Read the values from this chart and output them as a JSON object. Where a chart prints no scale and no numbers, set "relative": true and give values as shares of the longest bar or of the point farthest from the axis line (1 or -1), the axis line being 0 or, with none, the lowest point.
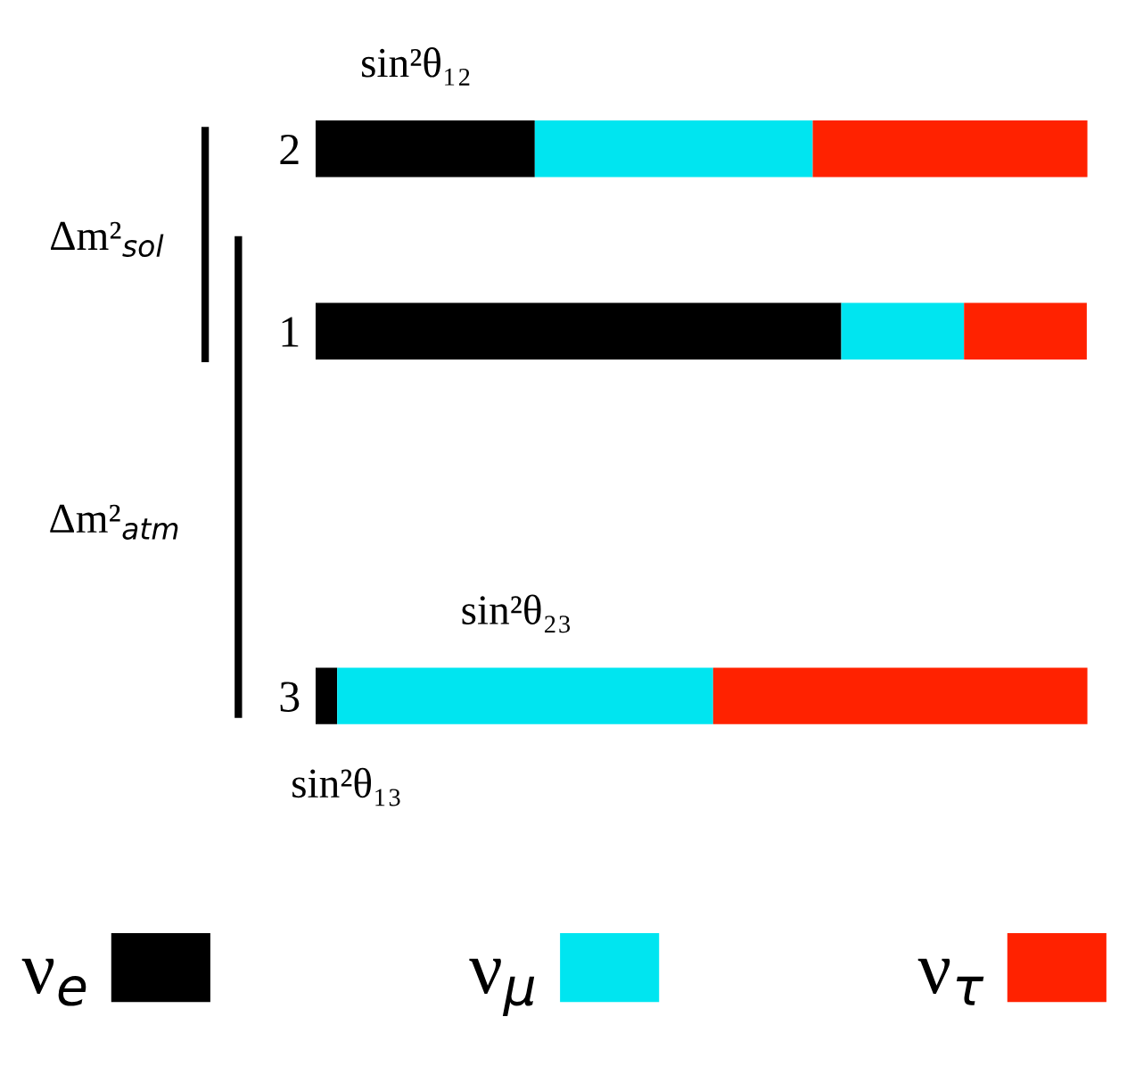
{
  "chart_data": {
    "type": "bar",
    "orientation": "horizontal",
    "stacked": true,
    "relative": true,
    "categories": [
      "2",
      "1",
      null,
      "3"
    ],
    "series": [
      {
        "name": "ν$_{e}$",
        "color": "#000000",
        "values": [
          0.284,
          0.681,
          null,
          0.028
        ]
      },
      {
        "name": "ν$_{μ}$",
        "color": "#00e5f0",
        "values": [
          0.36,
          0.159,
          null,
          0.487
        ]
      },
      {
        "name": "ν$_{τ}$",
        "color": "#ff2200",
        "values": [
          0.356,
          0.159,
          null,
          0.485
        ]
      }
    ],
    "annotations": [
      "sin²θ₁₂",
      "sin²θ₂₃",
      "sin²θ₁₃",
      "Δm²$_{sol}$",
      "Δm²$_{atm}$"
    ],
    "legend": "bottom",
    "tick_labels": "y",
    "grid": false
  }
}
